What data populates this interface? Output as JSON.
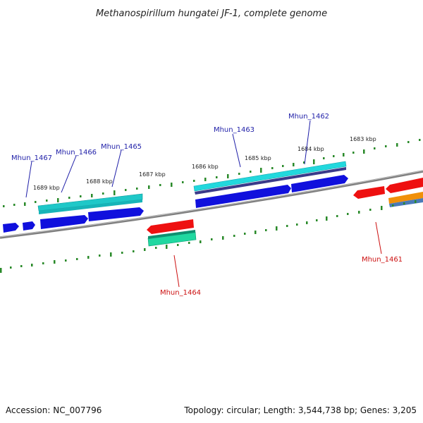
{
  "title": "Methanospirillum hungatei JF-1, complete genome",
  "accession_text": "Accession: NC_007796",
  "topology_text": "Topology: circular; Length: 3,544,738 bp; Genes: 3,205",
  "colors": {
    "backbone": "#8a8a8a",
    "tick": "#2a8a2a",
    "forward_label": "#1f1fa8",
    "reverse_label": "#cc1010",
    "forward_gene": "#1010dd",
    "reverse_gene": "#ee1010",
    "cds_forward": "#22d8dd",
    "cds_forward_alt": "#1fc8c8",
    "rna_forward": "#3a3a8a",
    "cds_reverse": "#20d8a0",
    "orange_feature": "#f0900a",
    "steelblue_feature": "#4a7ab8"
  },
  "kbp_labels": [
    "1683 kbp",
    "1684 kbp",
    "1685 kbp",
    "1686 kbp",
    "1687 kbp",
    "1688 kbp",
    "1689 kbp"
  ],
  "gene_labels": {
    "mhun_1462": "Mhun_1462",
    "mhun_1463": "Mhun_1463",
    "mhun_1465": "Mhun_1465",
    "mhun_1466": "Mhun_1466",
    "mhun_1467": "Mhun_1467",
    "mhun_1464": "Mhun_1464",
    "mhun_1461": "Mhun_1461"
  }
}
